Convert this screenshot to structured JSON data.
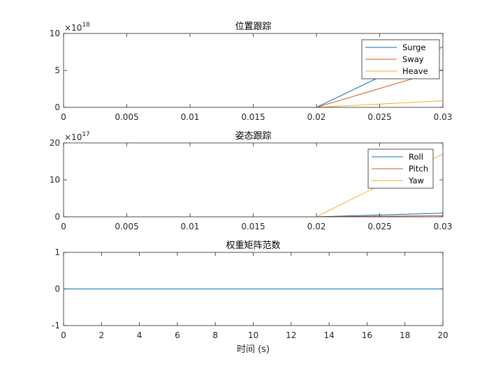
{
  "chart_data": [
    {
      "type": "line",
      "title": "位置跟踪",
      "xlabel": "",
      "ylabel": "",
      "xlim": [
        0,
        0.03
      ],
      "ylim": [
        0,
        10
      ],
      "y_exponent": "18",
      "y_exponent_prefix": "×10",
      "xticks": [
        0,
        0.005,
        0.01,
        0.015,
        0.02,
        0.025,
        0.03
      ],
      "xtick_labels": [
        "0",
        "0.005",
        "0.01",
        "0.015",
        "0.02",
        "0.025",
        "0.03"
      ],
      "yticks": [
        0,
        5,
        10
      ],
      "ytick_labels": [
        "0",
        "5",
        "10"
      ],
      "grid": false,
      "legend": "top-right",
      "series": [
        {
          "name": "Surge",
          "color": "#0072BD",
          "x": [
            0,
            0.02,
            0.03
          ],
          "y": [
            0,
            0,
            8.2
          ]
        },
        {
          "name": "Sway",
          "color": "#D95319",
          "x": [
            0,
            0.02,
            0.03
          ],
          "y": [
            0,
            0,
            5.1
          ]
        },
        {
          "name": "Heave",
          "color": "#EDB120",
          "x": [
            0,
            0.02,
            0.03
          ],
          "y": [
            0,
            0,
            0.9
          ]
        }
      ]
    },
    {
      "type": "line",
      "title": "姿态跟踪",
      "xlabel": "",
      "ylabel": "",
      "xlim": [
        0,
        0.03
      ],
      "ylim": [
        0,
        20
      ],
      "y_exponent": "17",
      "y_exponent_prefix": "×10",
      "xticks": [
        0,
        0.005,
        0.01,
        0.015,
        0.02,
        0.025,
        0.03
      ],
      "xtick_labels": [
        "0",
        "0.005",
        "0.01",
        "0.015",
        "0.02",
        "0.025",
        "0.03"
      ],
      "yticks": [
        0,
        10,
        20
      ],
      "ytick_labels": [
        "0",
        "10",
        "20"
      ],
      "grid": false,
      "legend": "top-right",
      "series": [
        {
          "name": "Roll",
          "color": "#0072BD",
          "x": [
            0,
            0.02,
            0.03
          ],
          "y": [
            0,
            0,
            1.0
          ]
        },
        {
          "name": "Pitch",
          "color": "#D95319",
          "x": [
            0,
            0.02,
            0.03
          ],
          "y": [
            0,
            0,
            0.3
          ]
        },
        {
          "name": "Yaw",
          "color": "#EDB120",
          "x": [
            0,
            0.02,
            0.03
          ],
          "y": [
            0,
            0,
            17
          ]
        }
      ]
    },
    {
      "type": "line",
      "title": "权重矩阵范数",
      "xlabel": "时间 (s)",
      "ylabel": "",
      "xlim": [
        0,
        20
      ],
      "ylim": [
        -1,
        1
      ],
      "xticks": [
        0,
        2,
        4,
        6,
        8,
        10,
        12,
        14,
        16,
        18,
        20
      ],
      "xtick_labels": [
        "0",
        "2",
        "4",
        "6",
        "8",
        "10",
        "12",
        "14",
        "16",
        "18",
        "20"
      ],
      "yticks": [
        -1,
        0,
        1
      ],
      "ytick_labels": [
        "-1",
        "0",
        "1"
      ],
      "grid": false,
      "legend": "none",
      "series": [
        {
          "color": "#0072BD",
          "x": [
            0,
            20
          ],
          "y": [
            0,
            0
          ]
        }
      ]
    }
  ]
}
